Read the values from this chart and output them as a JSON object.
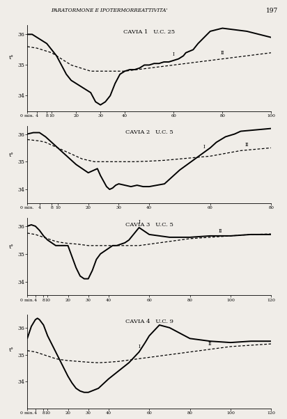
{
  "title_header": "PARATORMONE E IPOTERMORREATTIVITA'",
  "page_number": "197",
  "background_color": "#f0ede8",
  "subplots": [
    {
      "title": "CAVIA 1   U.C. 25",
      "ylim": [
        33.5,
        36.3
      ],
      "yticks": [
        34,
        35,
        36
      ],
      "xlim": [
        0,
        100
      ],
      "xticks": [
        0,
        4,
        8,
        10,
        20,
        30,
        40,
        60,
        80,
        100
      ],
      "xticklabels": [
        "0 min.",
        "4",
        "8",
        "10",
        "20",
        "30",
        "40",
        "60",
        "80",
        "100"
      ],
      "marker_I_x": 60,
      "marker_II_x": 80,
      "solid_x": [
        0,
        2,
        4,
        6,
        8,
        10,
        12,
        14,
        16,
        18,
        20,
        22,
        24,
        26,
        28,
        30,
        32,
        34,
        36,
        38,
        40,
        42,
        44,
        46,
        48,
        50,
        52,
        54,
        56,
        58,
        60,
        62,
        64,
        65,
        68,
        70,
        75,
        80,
        85,
        90,
        95,
        100
      ],
      "solid_y": [
        36.0,
        36.0,
        35.9,
        35.8,
        35.7,
        35.5,
        35.3,
        35.0,
        34.7,
        34.5,
        34.4,
        34.3,
        34.2,
        34.1,
        33.8,
        33.7,
        33.8,
        34.0,
        34.4,
        34.7,
        34.8,
        34.85,
        34.85,
        34.9,
        35.0,
        35.0,
        35.05,
        35.05,
        35.1,
        35.1,
        35.15,
        35.2,
        35.3,
        35.4,
        35.5,
        35.7,
        36.1,
        36.2,
        36.15,
        36.1,
        36.0,
        35.9
      ],
      "dashed_x": [
        0,
        4,
        6,
        8,
        10,
        12,
        14,
        16,
        18,
        20,
        22,
        24,
        26,
        28,
        30,
        35,
        40,
        45,
        50,
        55,
        60,
        65,
        70,
        75,
        80,
        85,
        90,
        95,
        100
      ],
      "dashed_y": [
        35.6,
        35.55,
        35.5,
        35.45,
        35.4,
        35.3,
        35.2,
        35.1,
        35.0,
        34.95,
        34.9,
        34.85,
        34.8,
        34.8,
        34.8,
        34.8,
        34.8,
        34.85,
        34.9,
        34.95,
        35.0,
        35.05,
        35.1,
        35.15,
        35.2,
        35.25,
        35.3,
        35.35,
        35.4
      ]
    },
    {
      "title": "CAVIA 2   U.C. 5",
      "ylim": [
        33.5,
        36.3
      ],
      "yticks": [
        34,
        35,
        36
      ],
      "xlim": [
        0,
        80
      ],
      "xticks": [
        0,
        4,
        8,
        10,
        20,
        30,
        40,
        60,
        80
      ],
      "xticklabels": [
        "0 min.",
        "4",
        "8",
        "10",
        "20",
        "30",
        "40",
        "60",
        "80"
      ],
      "marker_I_x": 58,
      "marker_II_x": 72,
      "solid_x": [
        0,
        2,
        4,
        6,
        8,
        10,
        12,
        14,
        16,
        18,
        20,
        22,
        23,
        24,
        25,
        26,
        27,
        28,
        29,
        30,
        32,
        34,
        36,
        38,
        40,
        45,
        50,
        55,
        60,
        62,
        65,
        68,
        70,
        75,
        80
      ],
      "solid_y": [
        36.0,
        36.05,
        36.05,
        35.9,
        35.7,
        35.5,
        35.3,
        35.1,
        34.9,
        34.75,
        34.6,
        34.7,
        34.75,
        34.5,
        34.3,
        34.1,
        34.0,
        34.05,
        34.15,
        34.2,
        34.15,
        34.1,
        34.15,
        34.1,
        34.1,
        34.2,
        34.7,
        35.1,
        35.5,
        35.7,
        35.9,
        36.0,
        36.1,
        36.15,
        36.2
      ],
      "dashed_x": [
        0,
        4,
        6,
        8,
        10,
        12,
        14,
        16,
        18,
        20,
        22,
        25,
        28,
        30,
        35,
        40,
        45,
        50,
        55,
        60,
        65,
        70,
        75,
        80
      ],
      "dashed_y": [
        35.8,
        35.75,
        35.7,
        35.6,
        35.5,
        35.4,
        35.3,
        35.2,
        35.1,
        35.05,
        35.0,
        35.0,
        35.0,
        35.0,
        35.0,
        35.02,
        35.05,
        35.1,
        35.15,
        35.2,
        35.3,
        35.4,
        35.45,
        35.5
      ]
    },
    {
      "title": "CAVIA 3   U.C. 5",
      "ylim": [
        33.5,
        36.3
      ],
      "yticks": [
        34,
        35,
        36
      ],
      "xlim": [
        0,
        120
      ],
      "xticks": [
        0,
        4,
        8,
        10,
        20,
        30,
        40,
        60,
        80,
        100,
        120
      ],
      "xticklabels": [
        "0 min.",
        "4",
        "8",
        "10",
        "20",
        "30",
        "40",
        "60",
        "80",
        "100",
        "120"
      ],
      "marker_I_x": 55,
      "marker_II_x": 95,
      "solid_x": [
        0,
        2,
        4,
        6,
        8,
        10,
        12,
        14,
        16,
        18,
        20,
        22,
        24,
        26,
        28,
        30,
        32,
        34,
        36,
        38,
        40,
        42,
        44,
        46,
        48,
        50,
        55,
        58,
        60,
        65,
        70,
        75,
        80,
        90,
        100,
        110,
        120
      ],
      "solid_y": [
        36.0,
        36.05,
        36.0,
        35.85,
        35.65,
        35.5,
        35.4,
        35.3,
        35.3,
        35.3,
        35.3,
        34.9,
        34.5,
        34.2,
        34.1,
        34.1,
        34.4,
        34.8,
        35.0,
        35.1,
        35.2,
        35.3,
        35.3,
        35.35,
        35.4,
        35.5,
        35.95,
        35.8,
        35.7,
        35.65,
        35.6,
        35.6,
        35.6,
        35.65,
        35.65,
        35.7,
        35.7
      ],
      "dashed_x": [
        0,
        4,
        6,
        8,
        10,
        12,
        14,
        16,
        18,
        20,
        25,
        30,
        35,
        40,
        45,
        50,
        55,
        60,
        65,
        70,
        75,
        80,
        90,
        100,
        110,
        120
      ],
      "dashed_y": [
        35.75,
        35.7,
        35.65,
        35.6,
        35.55,
        35.5,
        35.45,
        35.42,
        35.4,
        35.38,
        35.35,
        35.3,
        35.3,
        35.3,
        35.3,
        35.3,
        35.3,
        35.35,
        35.4,
        35.45,
        35.5,
        35.55,
        35.6,
        35.65,
        35.7,
        35.72
      ]
    },
    {
      "title": "CAVIA 4   U.C. 9",
      "ylim": [
        33.0,
        36.5
      ],
      "yticks": [
        34,
        35,
        36
      ],
      "xlim": [
        0,
        120
      ],
      "xticks": [
        0,
        4,
        8,
        10,
        20,
        30,
        40,
        60,
        80,
        100,
        120
      ],
      "xticklabels": [
        "0 min.",
        "4",
        "8",
        "10",
        "20",
        "30",
        "40",
        "60",
        "80",
        "100",
        "120"
      ],
      "marker_I_x": 55,
      "marker_II_x": 90,
      "solid_x": [
        0,
        2,
        4,
        5,
        6,
        8,
        10,
        12,
        14,
        16,
        18,
        20,
        22,
        24,
        26,
        28,
        30,
        35,
        40,
        45,
        50,
        55,
        58,
        60,
        65,
        70,
        75,
        80,
        90,
        100,
        110,
        120
      ],
      "solid_y": [
        35.6,
        36.05,
        36.3,
        36.35,
        36.3,
        36.1,
        35.7,
        35.4,
        35.1,
        34.8,
        34.5,
        34.2,
        33.95,
        33.75,
        33.65,
        33.6,
        33.6,
        33.75,
        34.1,
        34.4,
        34.7,
        35.1,
        35.45,
        35.7,
        36.1,
        36.0,
        35.8,
        35.6,
        35.5,
        35.45,
        35.5,
        35.5
      ],
      "dashed_x": [
        0,
        4,
        6,
        8,
        10,
        12,
        14,
        16,
        18,
        20,
        25,
        30,
        35,
        40,
        45,
        50,
        55,
        60,
        65,
        70,
        75,
        80,
        90,
        100,
        110,
        120
      ],
      "dashed_y": [
        35.15,
        35.1,
        35.05,
        35.0,
        34.95,
        34.9,
        34.85,
        34.82,
        34.8,
        34.78,
        34.75,
        34.72,
        34.7,
        34.72,
        34.75,
        34.8,
        34.85,
        34.9,
        34.95,
        35.0,
        35.05,
        35.1,
        35.2,
        35.3,
        35.35,
        35.4
      ]
    }
  ]
}
